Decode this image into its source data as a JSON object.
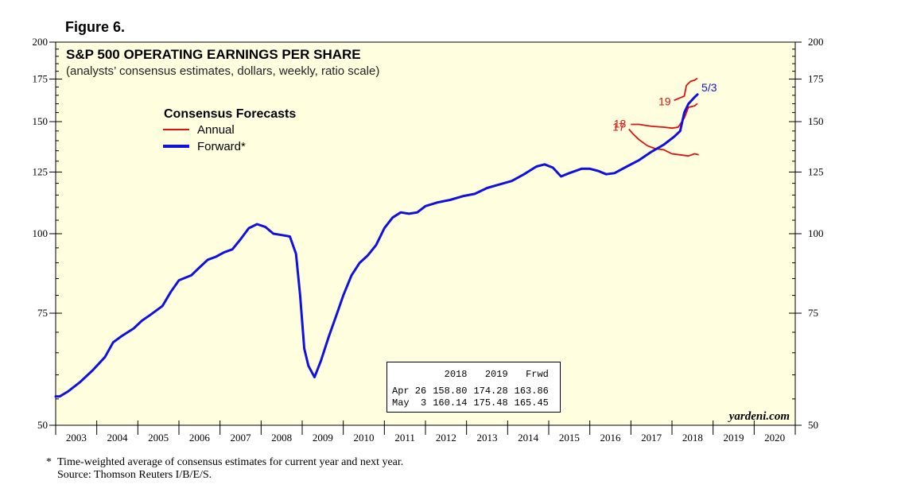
{
  "figure_label": "Figure 6.",
  "brand": "yardeni.com",
  "colors": {
    "annual": "#e01010",
    "forward": "#1010e0",
    "plot_bg": "#ffffe0"
  },
  "footnote": {
    "symbol": "*",
    "line1": "Time-weighted average of consensus estimates for current year and next year.",
    "line2": "Source: Thomson Reuters I/B/E/S."
  },
  "table": {
    "headers": [
      "",
      "2018",
      "2019",
      "Frwd"
    ],
    "rows": [
      [
        "Apr 26",
        "158.80",
        "174.28",
        "163.86"
      ],
      [
        "May  3",
        "160.14",
        "175.48",
        "165.45"
      ]
    ]
  },
  "chart_data": {
    "type": "line",
    "title": "S&P 500 OPERATING EARNINGS PER SHARE",
    "subtitle": "(analysts’ consensus estimates, dollars, weekly, ratio scale)",
    "legend_title": "Consensus Forecasts",
    "legend_position": "upper-left",
    "scale": "log",
    "ylim": [
      50,
      200
    ],
    "xlim": [
      2003,
      2021
    ],
    "y_ticks": [
      50,
      75,
      100,
      125,
      150,
      175,
      200
    ],
    "y_tick_labels": [
      "50",
      "75",
      "100",
      "125",
      "150",
      "175",
      "200"
    ],
    "x_labels": [
      "2003",
      "2004",
      "2005",
      "2006",
      "2007",
      "2008",
      "2009",
      "2010",
      "2011",
      "2012",
      "2013",
      "2014",
      "2015",
      "2016",
      "2017",
      "2018",
      "2019",
      "2020"
    ],
    "series": [
      {
        "name": "Forward*",
        "color": "#1010e0",
        "points": [
          [
            2003.0,
            55.5
          ],
          [
            2003.1,
            55.5
          ],
          [
            2003.3,
            56.5
          ],
          [
            2003.6,
            58.5
          ],
          [
            2003.9,
            61.0
          ],
          [
            2004.2,
            64.0
          ],
          [
            2004.4,
            67.5
          ],
          [
            2004.6,
            69.0
          ],
          [
            2004.9,
            71.0
          ],
          [
            2005.1,
            73.0
          ],
          [
            2005.3,
            74.5
          ],
          [
            2005.6,
            77.0
          ],
          [
            2005.8,
            81.0
          ],
          [
            2006.0,
            84.5
          ],
          [
            2006.3,
            86.0
          ],
          [
            2006.5,
            88.5
          ],
          [
            2006.7,
            91.0
          ],
          [
            2006.9,
            92.0
          ],
          [
            2007.1,
            93.5
          ],
          [
            2007.3,
            94.5
          ],
          [
            2007.5,
            98.0
          ],
          [
            2007.7,
            102.0
          ],
          [
            2007.9,
            103.5
          ],
          [
            2008.1,
            102.5
          ],
          [
            2008.3,
            100.0
          ],
          [
            2008.5,
            99.5
          ],
          [
            2008.7,
            99.0
          ],
          [
            2008.85,
            93.0
          ],
          [
            2008.95,
            80.0
          ],
          [
            2009.05,
            66.0
          ],
          [
            2009.15,
            62.0
          ],
          [
            2009.3,
            59.5
          ],
          [
            2009.45,
            63.0
          ],
          [
            2009.65,
            69.0
          ],
          [
            2009.85,
            75.0
          ],
          [
            2010.0,
            80.0
          ],
          [
            2010.2,
            86.0
          ],
          [
            2010.4,
            90.0
          ],
          [
            2010.6,
            92.5
          ],
          [
            2010.8,
            96.0
          ],
          [
            2011.0,
            102.0
          ],
          [
            2011.2,
            106.0
          ],
          [
            2011.4,
            108.0
          ],
          [
            2011.6,
            107.5
          ],
          [
            2011.8,
            108.0
          ],
          [
            2012.0,
            110.5
          ],
          [
            2012.3,
            112.0
          ],
          [
            2012.6,
            113.0
          ],
          [
            2012.9,
            114.5
          ],
          [
            2013.2,
            115.5
          ],
          [
            2013.5,
            118.0
          ],
          [
            2013.8,
            119.5
          ],
          [
            2014.1,
            121.0
          ],
          [
            2014.4,
            124.0
          ],
          [
            2014.7,
            127.5
          ],
          [
            2014.9,
            128.5
          ],
          [
            2015.1,
            127.0
          ],
          [
            2015.3,
            123.0
          ],
          [
            2015.5,
            124.5
          ],
          [
            2015.8,
            126.5
          ],
          [
            2016.0,
            126.5
          ],
          [
            2016.2,
            125.5
          ],
          [
            2016.4,
            124.0
          ],
          [
            2016.6,
            124.5
          ],
          [
            2016.9,
            127.5
          ],
          [
            2017.2,
            130.5
          ],
          [
            2017.5,
            134.5
          ],
          [
            2017.8,
            138.0
          ],
          [
            2018.05,
            142.0
          ],
          [
            2018.2,
            145.0
          ],
          [
            2018.3,
            155.0
          ],
          [
            2018.4,
            160.0
          ],
          [
            2018.55,
            163.86
          ],
          [
            2018.62,
            165.45
          ]
        ]
      },
      {
        "name": "Annual",
        "color": "#e01010",
        "points": [],
        "segments": [
          {
            "label": "17",
            "points": [
              [
                2016.95,
                146.0
              ],
              [
                2017.05,
                143.5
              ],
              [
                2017.2,
                140.5
              ],
              [
                2017.4,
                137.5
              ],
              [
                2017.6,
                136.0
              ],
              [
                2017.8,
                135.5
              ],
              [
                2018.0,
                133.5
              ],
              [
                2018.2,
                133.0
              ],
              [
                2018.4,
                132.5
              ],
              [
                2018.55,
                133.5
              ],
              [
                2018.65,
                133.0
              ]
            ]
          },
          {
            "label": "18",
            "points": [
              [
                2017.0,
                148.5
              ],
              [
                2017.2,
                148.5
              ],
              [
                2017.5,
                147.5
              ],
              [
                2017.8,
                147.0
              ],
              [
                2018.0,
                146.5
              ],
              [
                2018.15,
                147.0
              ],
              [
                2018.3,
                152.0
              ],
              [
                2018.4,
                158.0
              ],
              [
                2018.55,
                158.8
              ],
              [
                2018.62,
                160.14
              ]
            ]
          },
          {
            "label": "19",
            "points": [
              [
                2018.05,
                162.0
              ],
              [
                2018.15,
                163.0
              ],
              [
                2018.3,
                164.5
              ],
              [
                2018.35,
                171.0
              ],
              [
                2018.45,
                173.5
              ],
              [
                2018.55,
                174.28
              ],
              [
                2018.62,
                175.48
              ]
            ]
          }
        ]
      }
    ],
    "annotations": [
      {
        "text": "5/3",
        "series": "Forward*",
        "x": 2018.62,
        "y": 165.45
      },
      {
        "text": "17",
        "series": "Annual",
        "x": 2016.95,
        "y": 146.0
      },
      {
        "text": "18",
        "series": "Annual",
        "x": 2017.0,
        "y": 148.5
      },
      {
        "text": "19",
        "series": "Annual",
        "x": 2018.05,
        "y": 162.0
      }
    ]
  }
}
